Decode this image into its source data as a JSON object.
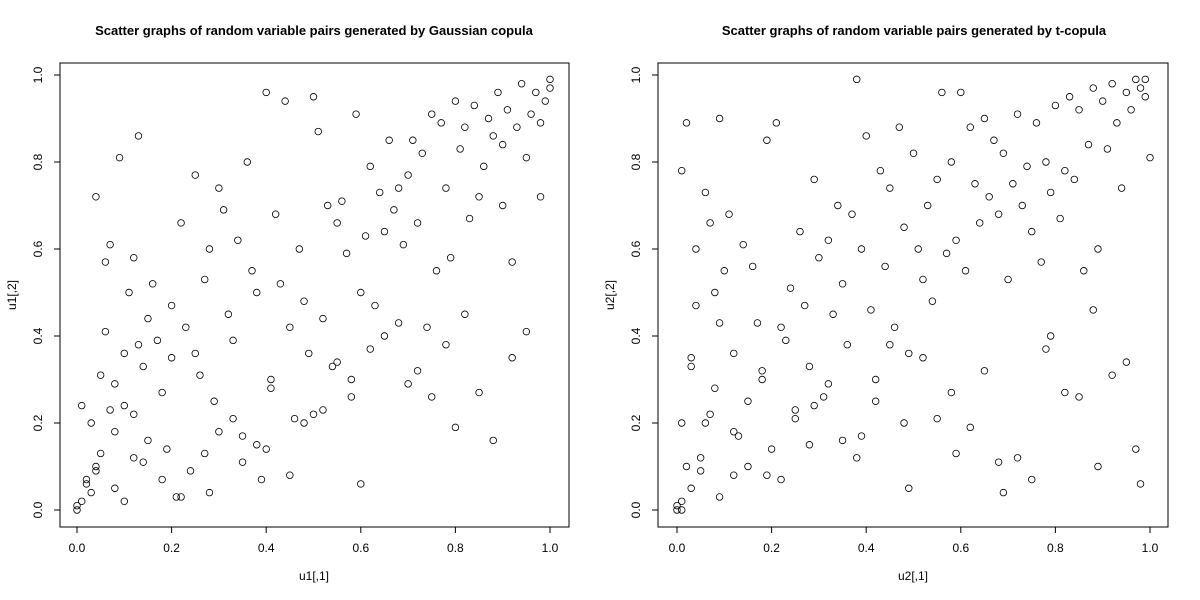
{
  "chart_data": [
    {
      "type": "scatter",
      "title": "Scatter graphs of random variable pairs generated by Gaussian copula",
      "xlabel": "u1[,1]",
      "ylabel": "u1[,2]",
      "xlim": [
        0,
        1
      ],
      "ylim": [
        0,
        1
      ],
      "xticks": [
        "0.0",
        "0.2",
        "0.4",
        "0.6",
        "0.8",
        "1.0"
      ],
      "yticks": [
        "0.0",
        "0.2",
        "0.4",
        "0.6",
        "0.8",
        "1.0"
      ],
      "marker_color": "#000000",
      "grid": false,
      "x": [
        0.0,
        0.0,
        0.01,
        0.01,
        0.02,
        0.03,
        0.03,
        0.04,
        0.04,
        0.05,
        0.06,
        0.06,
        0.07,
        0.07,
        0.08,
        0.08,
        0.09,
        0.1,
        0.1,
        0.11,
        0.12,
        0.12,
        0.13,
        0.14,
        0.14,
        0.15,
        0.16,
        0.17,
        0.18,
        0.19,
        0.2,
        0.21,
        0.22,
        0.23,
        0.24,
        0.25,
        0.25,
        0.26,
        0.27,
        0.28,
        0.29,
        0.3,
        0.31,
        0.32,
        0.33,
        0.34,
        0.35,
        0.36,
        0.37,
        0.38,
        0.39,
        0.4,
        0.41,
        0.42,
        0.43,
        0.44,
        0.45,
        0.46,
        0.47,
        0.48,
        0.49,
        0.5,
        0.51,
        0.52,
        0.53,
        0.54,
        0.55,
        0.56,
        0.57,
        0.58,
        0.59,
        0.6,
        0.61,
        0.62,
        0.63,
        0.64,
        0.65,
        0.66,
        0.67,
        0.68,
        0.69,
        0.7,
        0.71,
        0.72,
        0.73,
        0.74,
        0.75,
        0.76,
        0.77,
        0.78,
        0.79,
        0.8,
        0.81,
        0.82,
        0.83,
        0.84,
        0.85,
        0.86,
        0.87,
        0.88,
        0.89,
        0.9,
        0.9,
        0.91,
        0.92,
        0.93,
        0.94,
        0.95,
        0.96,
        0.97,
        0.98,
        0.99,
        1.0,
        1.0,
        0.05,
        0.1,
        0.15,
        0.2,
        0.3,
        0.4,
        0.5,
        0.6,
        0.7,
        0.8,
        0.85,
        0.95,
        0.12,
        0.22,
        0.35,
        0.45,
        0.55,
        0.65,
        0.75,
        0.88,
        0.04,
        0.13,
        0.27,
        0.33,
        0.41,
        0.52,
        0.62,
        0.72,
        0.82,
        0.92,
        0.02,
        0.08,
        0.18,
        0.28,
        0.38,
        0.48,
        0.58,
        0.68,
        0.78,
        0.98
      ],
      "y": [
        0.0,
        0.01,
        0.02,
        0.24,
        0.07,
        0.2,
        0.04,
        0.72,
        0.1,
        0.13,
        0.41,
        0.57,
        0.23,
        0.61,
        0.29,
        0.18,
        0.81,
        0.36,
        0.02,
        0.5,
        0.22,
        0.58,
        0.86,
        0.33,
        0.11,
        0.16,
        0.52,
        0.39,
        0.27,
        0.14,
        0.47,
        0.03,
        0.66,
        0.42,
        0.09,
        0.77,
        0.36,
        0.31,
        0.53,
        0.6,
        0.25,
        0.74,
        0.69,
        0.45,
        0.39,
        0.62,
        0.11,
        0.8,
        0.55,
        0.5,
        0.07,
        0.96,
        0.3,
        0.68,
        0.52,
        0.94,
        0.42,
        0.21,
        0.6,
        0.48,
        0.36,
        0.95,
        0.87,
        0.44,
        0.7,
        0.33,
        0.66,
        0.71,
        0.59,
        0.26,
        0.91,
        0.5,
        0.63,
        0.79,
        0.47,
        0.73,
        0.64,
        0.85,
        0.69,
        0.74,
        0.61,
        0.77,
        0.85,
        0.66,
        0.82,
        0.42,
        0.91,
        0.55,
        0.89,
        0.74,
        0.58,
        0.94,
        0.83,
        0.88,
        0.67,
        0.93,
        0.72,
        0.79,
        0.9,
        0.86,
        0.96,
        0.84,
        0.7,
        0.92,
        0.57,
        0.88,
        0.98,
        0.81,
        0.91,
        0.96,
        0.89,
        0.94,
        0.99,
        0.97,
        0.31,
        0.24,
        0.44,
        0.35,
        0.18,
        0.14,
        0.22,
        0.06,
        0.29,
        0.19,
        0.27,
        0.41,
        0.12,
        0.03,
        0.17,
        0.08,
        0.34,
        0.4,
        0.26,
        0.16,
        0.09,
        0.38,
        0.13,
        0.21,
        0.28,
        0.23,
        0.37,
        0.32,
        0.45,
        0.35,
        0.06,
        0.05,
        0.07,
        0.04,
        0.15,
        0.2,
        0.3,
        0.43,
        0.38,
        0.72
      ]
    },
    {
      "type": "scatter",
      "title": "Scatter graphs of random variable pairs generated by t-copula",
      "xlabel": "u2[,1]",
      "ylabel": "u2[,2]",
      "xlim": [
        0,
        1
      ],
      "ylim": [
        0,
        1
      ],
      "xticks": [
        "0.0",
        "0.2",
        "0.4",
        "0.6",
        "0.8",
        "1.0"
      ],
      "yticks": [
        "0.0",
        "0.2",
        "0.4",
        "0.6",
        "0.8",
        "1.0"
      ],
      "marker_color": "#000000",
      "grid": false,
      "x": [
        0.0,
        0.0,
        0.01,
        0.01,
        0.01,
        0.02,
        0.02,
        0.03,
        0.03,
        0.04,
        0.04,
        0.05,
        0.06,
        0.06,
        0.07,
        0.08,
        0.08,
        0.09,
        0.09,
        0.1,
        0.11,
        0.12,
        0.12,
        0.13,
        0.14,
        0.15,
        0.16,
        0.17,
        0.18,
        0.19,
        0.2,
        0.21,
        0.22,
        0.23,
        0.24,
        0.25,
        0.26,
        0.27,
        0.28,
        0.29,
        0.3,
        0.31,
        0.32,
        0.33,
        0.34,
        0.35,
        0.36,
        0.37,
        0.38,
        0.39,
        0.4,
        0.41,
        0.42,
        0.43,
        0.44,
        0.45,
        0.46,
        0.47,
        0.48,
        0.49,
        0.5,
        0.51,
        0.52,
        0.53,
        0.54,
        0.55,
        0.56,
        0.57,
        0.58,
        0.59,
        0.6,
        0.61,
        0.62,
        0.63,
        0.64,
        0.65,
        0.66,
        0.67,
        0.68,
        0.69,
        0.7,
        0.71,
        0.72,
        0.73,
        0.74,
        0.75,
        0.76,
        0.77,
        0.78,
        0.79,
        0.8,
        0.81,
        0.82,
        0.83,
        0.84,
        0.85,
        0.86,
        0.87,
        0.88,
        0.89,
        0.9,
        0.91,
        0.92,
        0.93,
        0.94,
        0.95,
        0.96,
        0.97,
        0.98,
        0.99,
        0.99,
        1.0,
        0.03,
        0.07,
        0.12,
        0.22,
        0.32,
        0.42,
        0.52,
        0.62,
        0.72,
        0.82,
        0.92,
        0.97,
        0.15,
        0.25,
        0.35,
        0.45,
        0.55,
        0.65,
        0.75,
        0.85,
        0.95,
        0.18,
        0.28,
        0.38,
        0.48,
        0.58,
        0.68,
        0.78,
        0.88,
        0.09,
        0.19,
        0.29,
        0.39,
        0.49,
        0.59,
        0.69,
        0.79,
        0.89,
        0.98,
        0.01,
        0.05
      ],
      "y": [
        0.0,
        0.01,
        0.02,
        0.78,
        0.0,
        0.89,
        0.1,
        0.35,
        0.05,
        0.47,
        0.6,
        0.12,
        0.73,
        0.2,
        0.66,
        0.28,
        0.5,
        0.9,
        0.43,
        0.55,
        0.68,
        0.08,
        0.36,
        0.17,
        0.61,
        0.25,
        0.56,
        0.43,
        0.32,
        0.85,
        0.14,
        0.89,
        0.07,
        0.39,
        0.51,
        0.21,
        0.64,
        0.47,
        0.33,
        0.76,
        0.58,
        0.26,
        0.62,
        0.45,
        0.7,
        0.52,
        0.38,
        0.68,
        0.99,
        0.6,
        0.86,
        0.46,
        0.3,
        0.78,
        0.56,
        0.74,
        0.42,
        0.88,
        0.65,
        0.36,
        0.82,
        0.6,
        0.53,
        0.7,
        0.48,
        0.76,
        0.96,
        0.59,
        0.8,
        0.62,
        0.96,
        0.55,
        0.88,
        0.75,
        0.66,
        0.9,
        0.72,
        0.85,
        0.68,
        0.82,
        0.53,
        0.75,
        0.91,
        0.7,
        0.79,
        0.64,
        0.89,
        0.57,
        0.8,
        0.73,
        0.93,
        0.67,
        0.78,
        0.95,
        0.76,
        0.92,
        0.55,
        0.84,
        0.97,
        0.6,
        0.94,
        0.83,
        0.98,
        0.89,
        0.74,
        0.96,
        0.92,
        0.99,
        0.97,
        0.95,
        0.99,
        0.81,
        0.33,
        0.22,
        0.18,
        0.42,
        0.29,
        0.25,
        0.35,
        0.19,
        0.12,
        0.27,
        0.31,
        0.14,
        0.1,
        0.23,
        0.16,
        0.38,
        0.21,
        0.32,
        0.07,
        0.26,
        0.34,
        0.3,
        0.15,
        0.12,
        0.2,
        0.27,
        0.11,
        0.37,
        0.46,
        0.03,
        0.08,
        0.24,
        0.17,
        0.05,
        0.13,
        0.04,
        0.4,
        0.1,
        0.06,
        0.2,
        0.09
      ]
    }
  ]
}
